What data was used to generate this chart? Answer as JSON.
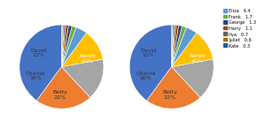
{
  "slices": [
    {
      "label": "Aaron",
      "value": 40,
      "color": "#4472C4",
      "show_label": true
    },
    {
      "label": "Betty",
      "value": 22,
      "color": "#ED7D31",
      "show_label": true
    },
    {
      "label": "Charlie",
      "value": 16,
      "color": "#A5A5A5",
      "show_label": true
    },
    {
      "label": "David",
      "value": 12,
      "color": "#FFC000",
      "show_label": true
    },
    {
      "label": "Eliza",
      "value": 4.4,
      "color": "#5B9BD5",
      "show_label": false
    },
    {
      "label": "Frank",
      "value": 1.7,
      "color": "#70AD47",
      "show_label": false
    },
    {
      "label": "George",
      "value": 1.3,
      "color": "#264478",
      "show_label": false
    },
    {
      "label": "Harry",
      "value": 1.1,
      "color": "#9E480E",
      "show_label": false
    },
    {
      "label": "Ilya",
      "value": 0.7,
      "color": "#636363",
      "show_label": false
    },
    {
      "label": "Juliet",
      "value": 0.6,
      "color": "#997300",
      "show_label": false
    },
    {
      "label": "Kate",
      "value": 0.3,
      "color": "#255E91",
      "show_label": false
    }
  ],
  "legend_entries": [
    {
      "label": "Eliza",
      "value": "4.4",
      "color": "#5B9BD5"
    },
    {
      "label": "Frank",
      "value": "1.7",
      "color": "#70AD47"
    },
    {
      "label": "George",
      "value": "1.3",
      "color": "#264478"
    },
    {
      "label": "Harry",
      "value": "1.1",
      "color": "#9E480E"
    },
    {
      "label": "Ilya",
      "value": "0.7",
      "color": "#636363"
    },
    {
      "label": "Juliet",
      "value": "0.6",
      "color": "#997300"
    },
    {
      "label": "Kate",
      "value": "0.3",
      "color": "#255E91"
    }
  ],
  "background_color": "#ffffff",
  "label_fontsize": 4.5,
  "startangle": 90
}
